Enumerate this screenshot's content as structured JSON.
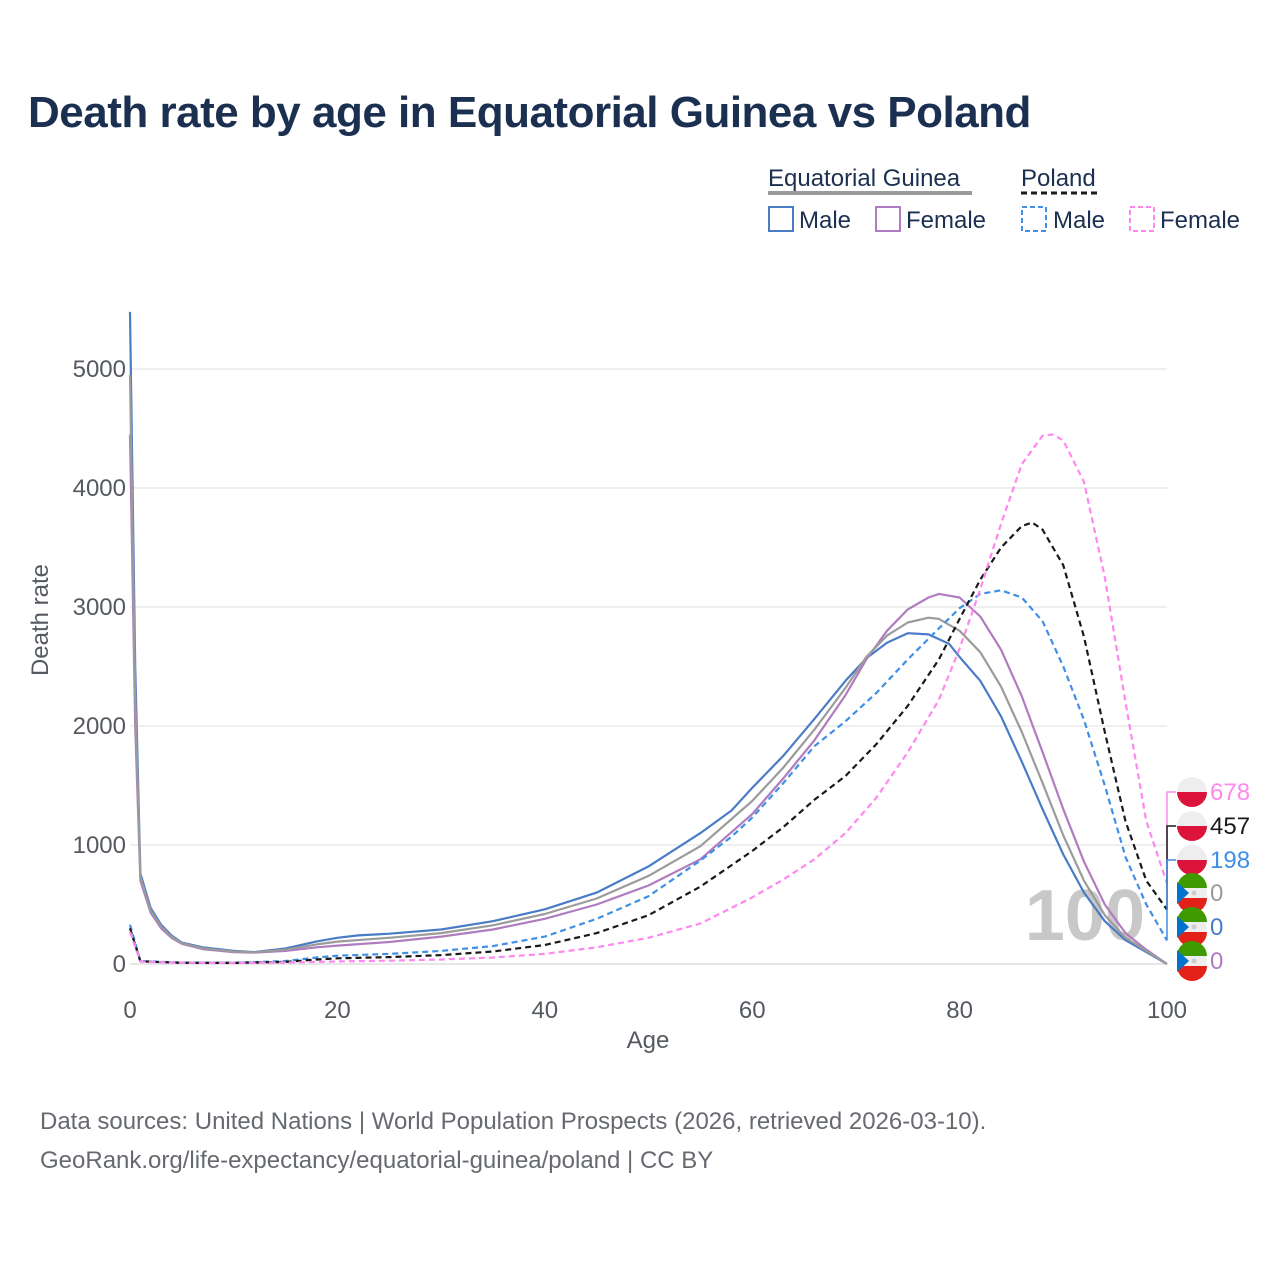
{
  "title": "Death rate by age in Equatorial Guinea vs Poland",
  "source_line1": "Data sources: United Nations | World Population Prospects (2026, retrieved 2026-03-10).",
  "source_line2": "GeoRank.org/life-expectancy/equatorial-guinea/poland | CC BY",
  "legend": {
    "group1": "Equatorial Guinea",
    "group2": "Poland",
    "male": "Male",
    "female": "Female"
  },
  "watermark_age": "100",
  "chart_data": {
    "type": "line",
    "title": "Death rate by age in Equatorial Guinea vs Poland",
    "xlabel": "Age",
    "ylabel": "Death rate",
    "xlim": [
      0,
      100
    ],
    "ylim": [
      0,
      5000
    ],
    "xticks": [
      0,
      20,
      40,
      60,
      80,
      100
    ],
    "yticks": [
      0,
      1000,
      2000,
      3000,
      4000,
      5000
    ],
    "grid": true,
    "series": [
      {
        "name": "Equatorial Guinea Male",
        "country": "Equatorial Guinea",
        "sex": "Male",
        "color": "#4a7cc6",
        "dash": false,
        "points": [
          [
            0,
            5480
          ],
          [
            0.5,
            2500
          ],
          [
            1,
            760
          ],
          [
            2,
            470
          ],
          [
            3,
            330
          ],
          [
            4,
            240
          ],
          [
            5,
            180
          ],
          [
            7,
            140
          ],
          [
            10,
            110
          ],
          [
            12,
            100
          ],
          [
            15,
            130
          ],
          [
            18,
            190
          ],
          [
            20,
            220
          ],
          [
            22,
            240
          ],
          [
            25,
            255
          ],
          [
            30,
            290
          ],
          [
            35,
            360
          ],
          [
            40,
            460
          ],
          [
            45,
            600
          ],
          [
            50,
            820
          ],
          [
            55,
            1100
          ],
          [
            58,
            1290
          ],
          [
            60,
            1480
          ],
          [
            63,
            1750
          ],
          [
            66,
            2060
          ],
          [
            69,
            2380
          ],
          [
            71,
            2570
          ],
          [
            73,
            2700
          ],
          [
            75,
            2780
          ],
          [
            77,
            2770
          ],
          [
            79,
            2690
          ],
          [
            80,
            2580
          ],
          [
            82,
            2380
          ],
          [
            84,
            2080
          ],
          [
            86,
            1700
          ],
          [
            88,
            1300
          ],
          [
            90,
            920
          ],
          [
            92,
            600
          ],
          [
            94,
            360
          ],
          [
            96,
            200
          ],
          [
            98,
            100
          ],
          [
            100,
            0
          ]
        ],
        "end_value": 0
      },
      {
        "name": "Equatorial Guinea Female",
        "country": "Equatorial Guinea",
        "sex": "Female",
        "color": "#b07cc0",
        "dash": false,
        "points": [
          [
            0,
            4450
          ],
          [
            0.5,
            2000
          ],
          [
            1,
            700
          ],
          [
            2,
            430
          ],
          [
            3,
            300
          ],
          [
            4,
            220
          ],
          [
            5,
            170
          ],
          [
            7,
            125
          ],
          [
            10,
            100
          ],
          [
            12,
            95
          ],
          [
            15,
            110
          ],
          [
            18,
            140
          ],
          [
            20,
            155
          ],
          [
            25,
            185
          ],
          [
            30,
            230
          ],
          [
            35,
            290
          ],
          [
            40,
            380
          ],
          [
            45,
            500
          ],
          [
            50,
            660
          ],
          [
            55,
            880
          ],
          [
            60,
            1260
          ],
          [
            63,
            1560
          ],
          [
            66,
            1880
          ],
          [
            69,
            2260
          ],
          [
            71,
            2560
          ],
          [
            73,
            2800
          ],
          [
            75,
            2980
          ],
          [
            77,
            3080
          ],
          [
            78,
            3110
          ],
          [
            80,
            3080
          ],
          [
            82,
            2920
          ],
          [
            84,
            2640
          ],
          [
            86,
            2250
          ],
          [
            88,
            1780
          ],
          [
            90,
            1300
          ],
          [
            92,
            860
          ],
          [
            94,
            500
          ],
          [
            96,
            260
          ],
          [
            98,
            120
          ],
          [
            100,
            0
          ]
        ],
        "end_value": 0
      },
      {
        "name": "Equatorial Guinea Total",
        "country": "Equatorial Guinea",
        "sex": "Total",
        "color": "#9b9b9b",
        "dash": false,
        "points": [
          [
            0,
            4950
          ],
          [
            0.5,
            2250
          ],
          [
            1,
            730
          ],
          [
            2,
            450
          ],
          [
            3,
            315
          ],
          [
            4,
            230
          ],
          [
            5,
            175
          ],
          [
            7,
            132
          ],
          [
            10,
            105
          ],
          [
            12,
            98
          ],
          [
            15,
            120
          ],
          [
            18,
            165
          ],
          [
            20,
            188
          ],
          [
            25,
            220
          ],
          [
            30,
            260
          ],
          [
            35,
            325
          ],
          [
            40,
            420
          ],
          [
            45,
            550
          ],
          [
            50,
            740
          ],
          [
            55,
            990
          ],
          [
            60,
            1370
          ],
          [
            63,
            1650
          ],
          [
            66,
            1970
          ],
          [
            69,
            2320
          ],
          [
            71,
            2580
          ],
          [
            73,
            2760
          ],
          [
            75,
            2870
          ],
          [
            77,
            2910
          ],
          [
            78,
            2900
          ],
          [
            80,
            2800
          ],
          [
            82,
            2620
          ],
          [
            84,
            2330
          ],
          [
            86,
            1950
          ],
          [
            88,
            1520
          ],
          [
            90,
            1080
          ],
          [
            92,
            700
          ],
          [
            94,
            410
          ],
          [
            96,
            220
          ],
          [
            98,
            110
          ],
          [
            100,
            0
          ]
        ],
        "end_value": 0
      },
      {
        "name": "Poland Male",
        "country": "Poland",
        "sex": "Male",
        "color": "#3f8fe6",
        "dash": true,
        "points": [
          [
            0,
            330
          ],
          [
            1,
            25
          ],
          [
            5,
            12
          ],
          [
            10,
            10
          ],
          [
            15,
            25
          ],
          [
            18,
            55
          ],
          [
            20,
            70
          ],
          [
            25,
            85
          ],
          [
            30,
            110
          ],
          [
            35,
            150
          ],
          [
            40,
            230
          ],
          [
            45,
            380
          ],
          [
            50,
            570
          ],
          [
            55,
            870
          ],
          [
            58,
            1070
          ],
          [
            60,
            1230
          ],
          [
            63,
            1520
          ],
          [
            66,
            1830
          ],
          [
            69,
            2040
          ],
          [
            72,
            2280
          ],
          [
            75,
            2560
          ],
          [
            78,
            2820
          ],
          [
            80,
            2990
          ],
          [
            82,
            3110
          ],
          [
            84,
            3140
          ],
          [
            86,
            3080
          ],
          [
            88,
            2880
          ],
          [
            90,
            2500
          ],
          [
            92,
            2050
          ],
          [
            94,
            1500
          ],
          [
            96,
            900
          ],
          [
            98,
            500
          ],
          [
            100,
            198
          ]
        ],
        "end_value": 198
      },
      {
        "name": "Poland Total",
        "country": "Poland",
        "sex": "Total",
        "color": "#1a1a1a",
        "dash": true,
        "points": [
          [
            0,
            300
          ],
          [
            1,
            22
          ],
          [
            5,
            10
          ],
          [
            10,
            9
          ],
          [
            15,
            18
          ],
          [
            18,
            38
          ],
          [
            20,
            48
          ],
          [
            25,
            58
          ],
          [
            30,
            75
          ],
          [
            35,
            105
          ],
          [
            40,
            160
          ],
          [
            45,
            260
          ],
          [
            50,
            410
          ],
          [
            55,
            650
          ],
          [
            60,
            950
          ],
          [
            63,
            1150
          ],
          [
            66,
            1380
          ],
          [
            69,
            1580
          ],
          [
            72,
            1850
          ],
          [
            75,
            2170
          ],
          [
            78,
            2560
          ],
          [
            80,
            2900
          ],
          [
            82,
            3230
          ],
          [
            84,
            3500
          ],
          [
            86,
            3680
          ],
          [
            87,
            3710
          ],
          [
            88,
            3650
          ],
          [
            90,
            3350
          ],
          [
            92,
            2750
          ],
          [
            94,
            1950
          ],
          [
            96,
            1200
          ],
          [
            98,
            700
          ],
          [
            100,
            457
          ]
        ],
        "end_value": 457
      },
      {
        "name": "Poland Female",
        "country": "Poland",
        "sex": "Female",
        "color": "#ff88ee",
        "dash": true,
        "points": [
          [
            0,
            270
          ],
          [
            1,
            20
          ],
          [
            5,
            9
          ],
          [
            10,
            8
          ],
          [
            15,
            12
          ],
          [
            18,
            18
          ],
          [
            20,
            22
          ],
          [
            25,
            28
          ],
          [
            30,
            38
          ],
          [
            35,
            55
          ],
          [
            40,
            85
          ],
          [
            45,
            140
          ],
          [
            50,
            220
          ],
          [
            55,
            340
          ],
          [
            60,
            560
          ],
          [
            63,
            710
          ],
          [
            66,
            880
          ],
          [
            69,
            1100
          ],
          [
            72,
            1400
          ],
          [
            75,
            1780
          ],
          [
            78,
            2220
          ],
          [
            80,
            2650
          ],
          [
            82,
            3150
          ],
          [
            84,
            3700
          ],
          [
            86,
            4200
          ],
          [
            88,
            4440
          ],
          [
            89,
            4450
          ],
          [
            90,
            4400
          ],
          [
            92,
            4050
          ],
          [
            94,
            3250
          ],
          [
            96,
            2200
          ],
          [
            98,
            1200
          ],
          [
            100,
            678
          ]
        ],
        "end_value": 678
      }
    ],
    "end_labels": [
      {
        "country": "Poland",
        "sex": "Female",
        "value": "678",
        "color": "#ff88ee"
      },
      {
        "country": "Poland",
        "sex": "Total",
        "value": "457",
        "color": "#1a1a1a"
      },
      {
        "country": "Poland",
        "sex": "Male",
        "value": "198",
        "color": "#3f8fe6"
      },
      {
        "country": "Equatorial Guinea",
        "sex": "Total",
        "value": "0",
        "color": "#9b9b9b"
      },
      {
        "country": "Equatorial Guinea",
        "sex": "Male",
        "value": "0",
        "color": "#4a7cc6"
      },
      {
        "country": "Equatorial Guinea",
        "sex": "Female",
        "value": "0",
        "color": "#b07cc0"
      }
    ]
  }
}
